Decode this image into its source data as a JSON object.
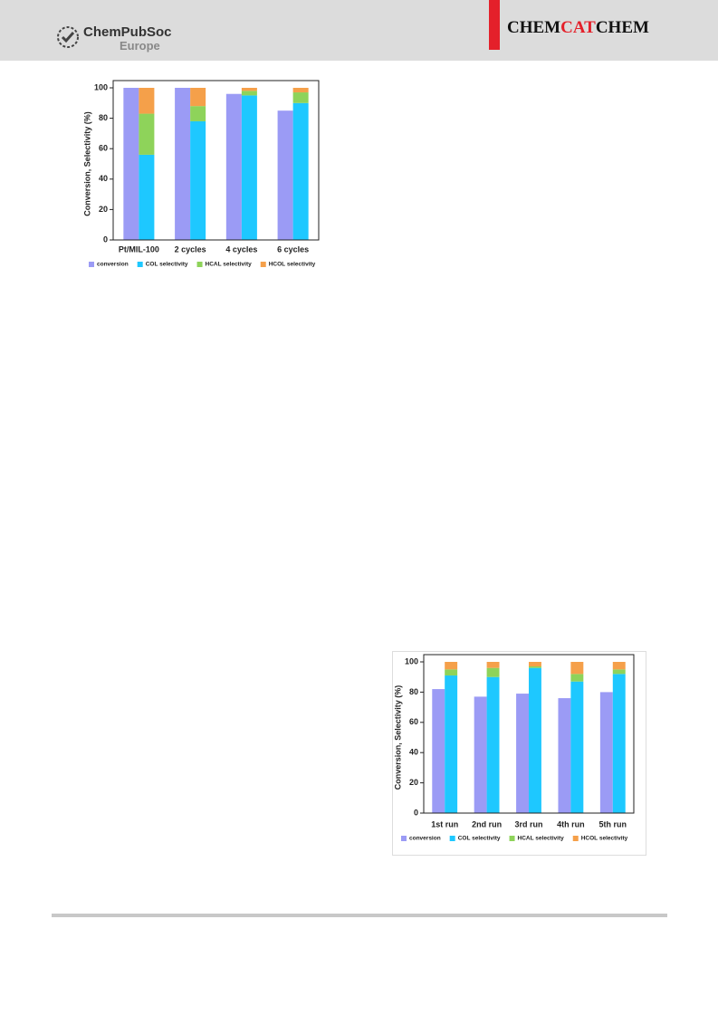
{
  "header": {
    "logo": "ChemPubSoc",
    "logo_sub": "Europe",
    "journal": [
      "CHEM",
      "CAT",
      "CHEM"
    ]
  },
  "chart_data": [
    {
      "type": "bar",
      "y_label": "Conversion, Selectivity (%)",
      "categories": [
        "Pt/MIL-100",
        "2 cycles",
        "4 cycles",
        "6 cycles"
      ],
      "ylim": [
        0,
        100
      ],
      "yticks": [
        0,
        20,
        40,
        60,
        80,
        100
      ],
      "series": [
        {
          "name": "conversion",
          "color": "#9b9bf5",
          "stack": 0,
          "values": [
            100,
            100,
            96,
            85
          ]
        },
        {
          "name": "COL selectivity",
          "color": "#1ec8ff",
          "stack": 1,
          "values": [
            56,
            78,
            95,
            90
          ]
        },
        {
          "name": "HCAL selectivity",
          "color": "#8ed35a",
          "stack": 1,
          "values": [
            27,
            10,
            3,
            7
          ]
        },
        {
          "name": "HCOL selectivity",
          "color": "#f5a04a",
          "stack": 1,
          "values": [
            17,
            12,
            2,
            3
          ]
        }
      ]
    },
    {
      "type": "bar",
      "y_label": "Conversion, Selectivity (%)",
      "categories": [
        "1st run",
        "2nd run",
        "3rd run",
        "4th run",
        "5th run"
      ],
      "ylim": [
        0,
        100
      ],
      "yticks": [
        0,
        20,
        40,
        60,
        80,
        100
      ],
      "series": [
        {
          "name": "conversion",
          "color": "#9b9bf5",
          "stack": 0,
          "values": [
            82,
            77,
            79,
            76,
            80
          ]
        },
        {
          "name": "COL selectivity",
          "color": "#1ec8ff",
          "stack": 1,
          "values": [
            91,
            90,
            96,
            87,
            92
          ]
        },
        {
          "name": "HCAL selectivity",
          "color": "#8ed35a",
          "stack": 1,
          "values": [
            4,
            6,
            1,
            5,
            3
          ]
        },
        {
          "name": "HCOL selectivity",
          "color": "#f5a04a",
          "stack": 1,
          "values": [
            5,
            4,
            3,
            8,
            5
          ]
        }
      ]
    }
  ]
}
